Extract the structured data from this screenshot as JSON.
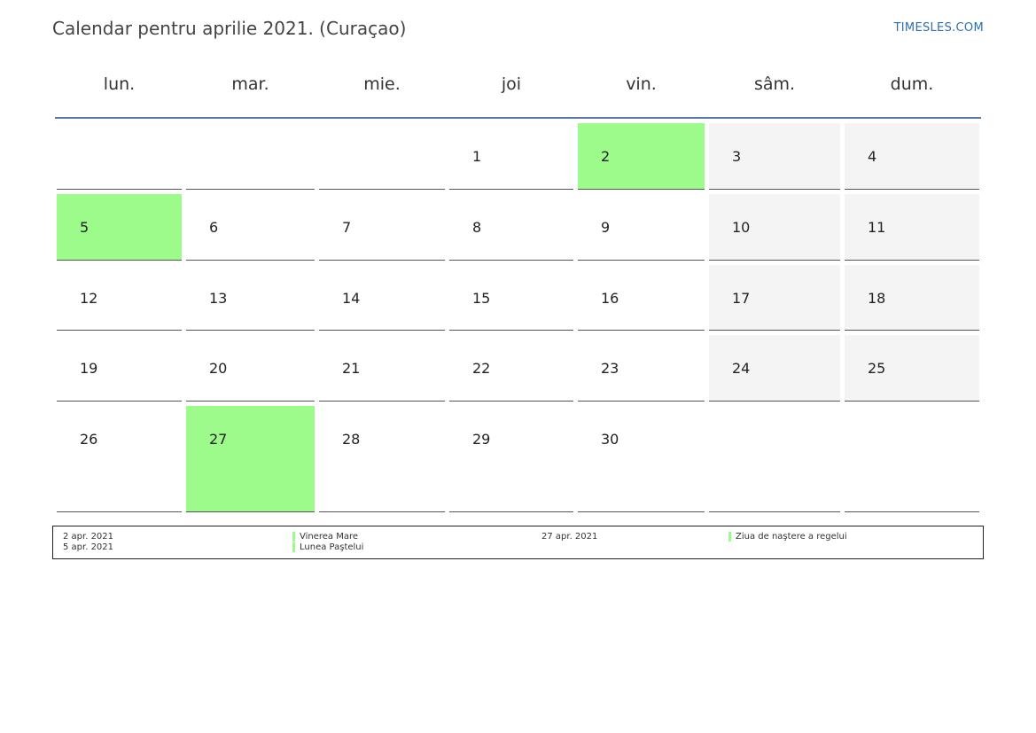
{
  "header": {
    "title": "Calendar pentru aprilie 2021. (Curaçao)",
    "site": "TIMESLES.COM"
  },
  "weekdays": [
    "lun.",
    "mar.",
    "mie.",
    "joi",
    "vin.",
    "sâm.",
    "dum."
  ],
  "weeks": [
    [
      "",
      "",
      "",
      "1",
      "2",
      "3",
      "4"
    ],
    [
      "5",
      "6",
      "7",
      "8",
      "9",
      "10",
      "11"
    ],
    [
      "12",
      "13",
      "14",
      "15",
      "16",
      "17",
      "18"
    ],
    [
      "19",
      "20",
      "21",
      "22",
      "23",
      "24",
      "25"
    ],
    [
      "26",
      "27",
      "28",
      "29",
      "30",
      "",
      ""
    ]
  ],
  "holidays_days": [
    "2",
    "5",
    "27"
  ],
  "colors": {
    "holiday": "#9cfb8a",
    "weekend": "#f4f4f4",
    "header_rule": "#5a7aa0",
    "link": "#2f6fb0"
  },
  "legend": [
    {
      "date": "2 apr. 2021",
      "name": "Vinerea Mare"
    },
    {
      "date": "5 apr. 2021",
      "name": "Lunea Paştelui"
    },
    {
      "date": "27 apr. 2021",
      "name": "Ziua de naştere a regelui"
    }
  ]
}
